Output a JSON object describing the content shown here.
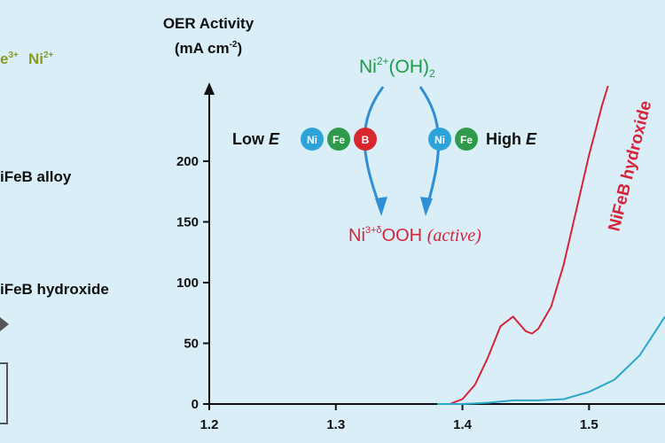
{
  "colors": {
    "background": "#d9eef7",
    "axis": "#111111",
    "red": "#d6243a",
    "cyan": "#2aa7c9",
    "green": "#1f9a46",
    "blue_arrow": "#2f8fd6",
    "ni_ball": "#2ea3da",
    "fe_ball": "#2d9b4a",
    "b_ball": "#d8282d",
    "olive_text": "#8a9a1c"
  },
  "left_panel": {
    "top_fragment": "e",
    "top_fragment_sup": "3+",
    "top_ni": "Ni",
    "top_ni_sup": "2+",
    "alloy_label": "iFeB alloy",
    "hydroxide_label": "iFeB hydroxide"
  },
  "axis_title_line1": "OER Activity",
  "axis_title_line2": "(mA cm",
  "axis_title_sup": "-2",
  "axis_title_close": ")",
  "scheme": {
    "ni2_oh2": "Ni",
    "ni2_sup": "2+",
    "ni2_rest": "(OH)",
    "ni2_sub": "2",
    "low_e_prefix": "Low ",
    "low_e_var": "E",
    "high_e_prefix": "High ",
    "high_e_var": "E",
    "ball_ni": "Ni",
    "ball_fe": "Fe",
    "ball_b": "B",
    "product_ni": "Ni",
    "product_sup": "3+δ",
    "product_rest": "OOH ",
    "product_active": "(active)"
  },
  "chart_data": {
    "type": "line",
    "xlim": [
      1.2,
      1.56
    ],
    "ylim": [
      0,
      270
    ],
    "x_ticks": [
      "1.2",
      "1.3",
      "1.4",
      "1.5"
    ],
    "y_ticks": [
      "0",
      "50",
      "100",
      "150",
      "200"
    ],
    "annotations": [
      "NiFeB hydroxide"
    ],
    "series": [
      {
        "name": "NiFeB hydroxide",
        "color": "#d6243a",
        "x": [
          1.39,
          1.4,
          1.41,
          1.42,
          1.43,
          1.44,
          1.445,
          1.45,
          1.455,
          1.46,
          1.47,
          1.48,
          1.49,
          1.5,
          1.505,
          1.51,
          1.515
        ],
        "y": [
          0,
          4,
          16,
          38,
          64,
          72,
          66,
          60,
          58,
          62,
          80,
          115,
          160,
          205,
          225,
          245,
          262
        ]
      },
      {
        "name": "",
        "color": "#2aa7c9",
        "x": [
          1.38,
          1.4,
          1.42,
          1.44,
          1.46,
          1.48,
          1.5,
          1.52,
          1.54,
          1.56
        ],
        "y": [
          0,
          0,
          1,
          3,
          3,
          4,
          10,
          20,
          40,
          72
        ]
      }
    ]
  }
}
